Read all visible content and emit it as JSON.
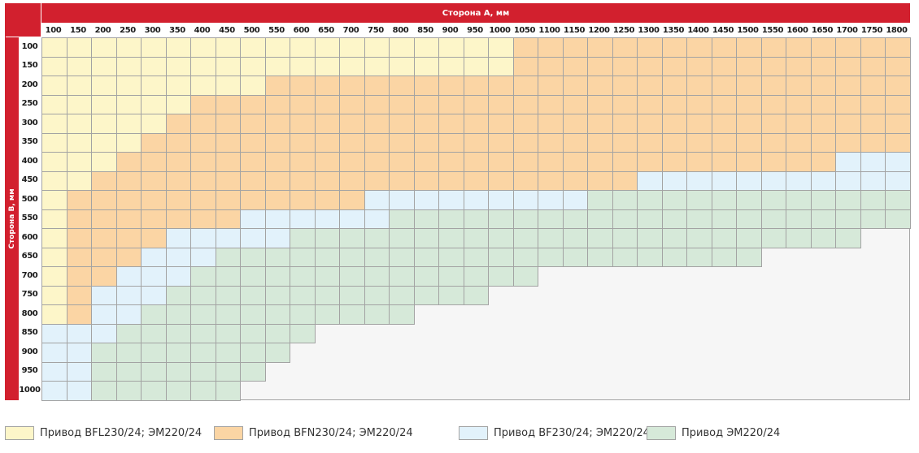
{
  "header": {
    "col_title": "Сторона А, мм",
    "row_title": "Сторона В, мм"
  },
  "cols": [
    "100",
    "150",
    "200",
    "250",
    "300",
    "350",
    "400",
    "450",
    "500",
    "550",
    "600",
    "650",
    "700",
    "750",
    "800",
    "850",
    "900",
    "950",
    "1000",
    "1050",
    "1100",
    "1150",
    "1200",
    "1250",
    "1300",
    "1350",
    "1400",
    "1450",
    "1500",
    "1550",
    "1600",
    "1650",
    "1700",
    "1750",
    "1800"
  ],
  "rows": [
    "100",
    "150",
    "200",
    "250",
    "300",
    "350",
    "400",
    "450",
    "500",
    "550",
    "600",
    "650",
    "700",
    "750",
    "800",
    "850",
    "900",
    "950",
    "1000"
  ],
  "colors": {
    "Y": "#fdf6c9",
    "O": "#fbd5a4",
    "B": "#e2f2fb",
    "G": "#d6e9d9",
    "empty": "#f6f6f6"
  },
  "grid": [
    "YYYYYYYYYYYYYYYYYYYOOOOOOOOOOOOOOOO",
    "YYYYYYYYYYYYYYYYYYYOOOOOOOOOOOOOOOO",
    "YYYYYYYYYOOOOOOOOOOOOOOOOOOOOOOOOOO",
    "YYYYYYOOOOOOOOOOOOOOOOOOOOOOOOOOOOO",
    "YYYYYOOOOOOOOOOOOOOOOOOOOOOOOOOOOOO",
    "YYYYOOOOOOOOOOOOOOOOOOOOOOOOOOOOOOO",
    "YYYOOOOOOOOOOOOOOOOOOOOOOOOOOOOOBBB",
    "YYOOOOOOOOOOOOOOOOOOOOOOBBBBBBBBBBB",
    "YOOOOOOOOOOOOBBBBBBBBBGGGGGGGGGGGGG",
    "YOOOOOOOBBBBBBGGGGGGGGGGGGGGGGGGGGG",
    "YOOOOBBBBBGGGGGGGGGGGGGGGGGGGGGGG..",
    "YOOOBBBGGGGGGGGGGGGGGGGGGGGGG......",
    "YOOBBBGGGGGGGGGGGGGG...............",
    "YOBBBGGGGGGGGGGGGG.................",
    "YOBBGGGGGGGGGGG....................",
    "BBBGGGGGGGG........................",
    "BBGGGGGGGG.........................",
    "BBGGGGGGG..........................",
    "BBGGGGGG..........................."
  ],
  "legend": [
    {
      "key": "Y",
      "label": "Привод BFL230/24; ЭМ220/24"
    },
    {
      "key": "O",
      "label": "Привод BFN230/24; ЭМ220/24"
    },
    {
      "key": "B",
      "label": "Привод BF230/24; ЭМ220/24"
    },
    {
      "key": "G",
      "label": "Привод ЭМ220/24"
    }
  ]
}
